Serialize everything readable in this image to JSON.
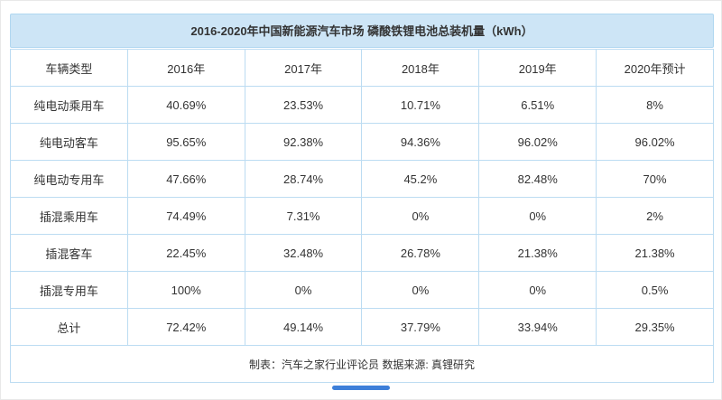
{
  "colors": {
    "title_background": "#cde5f6",
    "table_border": "#bcdcf2",
    "text": "#333333",
    "scrollbar_thumb": "#3d7fd9"
  },
  "chart_data": {
    "type": "table",
    "title": "2016-2020年中国新能源汽车市场 磷酸铁锂电池总装机量（kWh）",
    "columns": [
      "车辆类型",
      "2016年",
      "2017年",
      "2018年",
      "2019年",
      "2020年预计"
    ],
    "rows": [
      [
        "纯电动乘用车",
        "40.69%",
        "23.53%",
        "10.71%",
        "6.51%",
        "8%"
      ],
      [
        "纯电动客车",
        "95.65%",
        "92.38%",
        "94.36%",
        "96.02%",
        "96.02%"
      ],
      [
        "纯电动专用车",
        "47.66%",
        "28.74%",
        "45.2%",
        "82.48%",
        "70%"
      ],
      [
        "插混乘用车",
        "74.49%",
        "7.31%",
        "0%",
        "0%",
        "2%"
      ],
      [
        "插混客车",
        "22.45%",
        "32.48%",
        "26.78%",
        "21.38%",
        "21.38%"
      ],
      [
        "插混专用车",
        "100%",
        "0%",
        "0%",
        "0%",
        "0.5%"
      ],
      [
        "总计",
        "72.42%",
        "49.14%",
        "37.79%",
        "33.94%",
        "29.35%"
      ]
    ],
    "footer": "制表：汽车之家行业评论员  数据来源: 真锂研究"
  }
}
